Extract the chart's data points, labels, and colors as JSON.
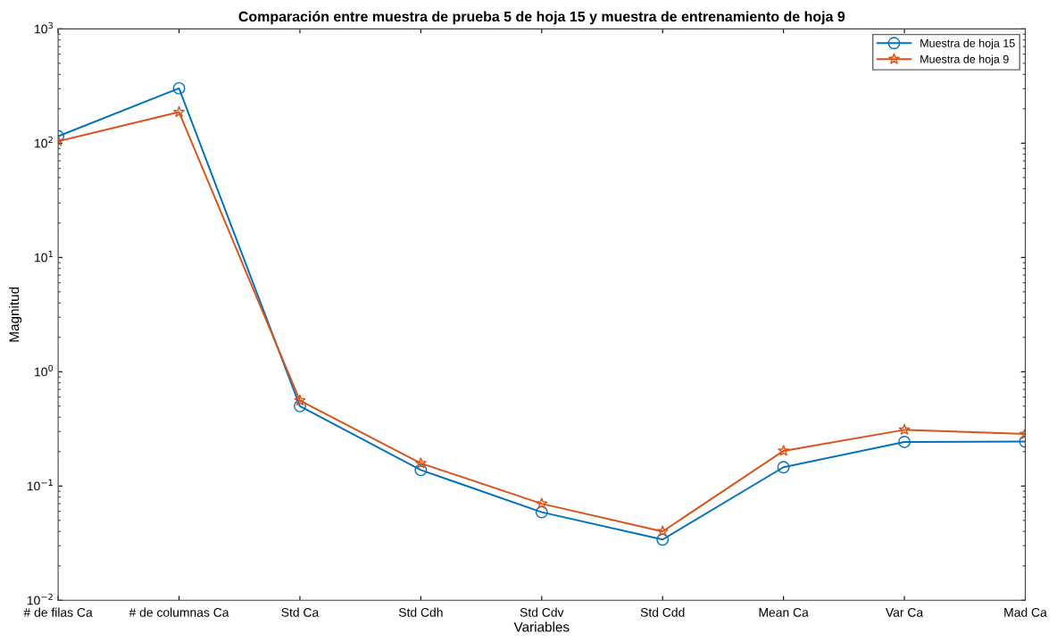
{
  "chart_data": {
    "type": "line",
    "title": "Comparación entre muestra de prueba 5 de hoja 15 y muestra de entrenamiento de hoja 9",
    "xlabel": "Variables",
    "ylabel": "Magnitud",
    "categories": [
      "# de filas Ca",
      "# de columnas Ca",
      "Std Ca",
      "Std Cdh",
      "Std Cdv",
      "Std Cdd",
      "Mean Ca",
      "Var Ca",
      "Mad Ca"
    ],
    "series": [
      {
        "name": "Muestra de hoja 15",
        "color": "#0072bd",
        "marker": "circle",
        "values": [
          115,
          302,
          0.5,
          0.138,
          0.059,
          0.034,
          0.146,
          0.243,
          0.245
        ]
      },
      {
        "name": "Muestra de hoja 9",
        "color": "#d95319",
        "marker": "star",
        "values": [
          104,
          187,
          0.56,
          0.158,
          0.07,
          0.04,
          0.203,
          0.31,
          0.285
        ]
      }
    ],
    "log": "y",
    "ylim": [
      0.01,
      1000
    ],
    "yticks": [
      {
        "value": 0.01,
        "label": "10$^{−2}$"
      },
      {
        "value": 0.1,
        "label": "10$^{−1}$"
      },
      {
        "value": 1,
        "label": "10$^{0}$"
      },
      {
        "value": 10,
        "label": "10$^{1}$"
      },
      {
        "value": 100,
        "label": "10$^{2}$"
      },
      {
        "value": 1000,
        "label": "10$^{3}$"
      }
    ],
    "grid": false,
    "legend": "top right",
    "line_style": "solid"
  }
}
